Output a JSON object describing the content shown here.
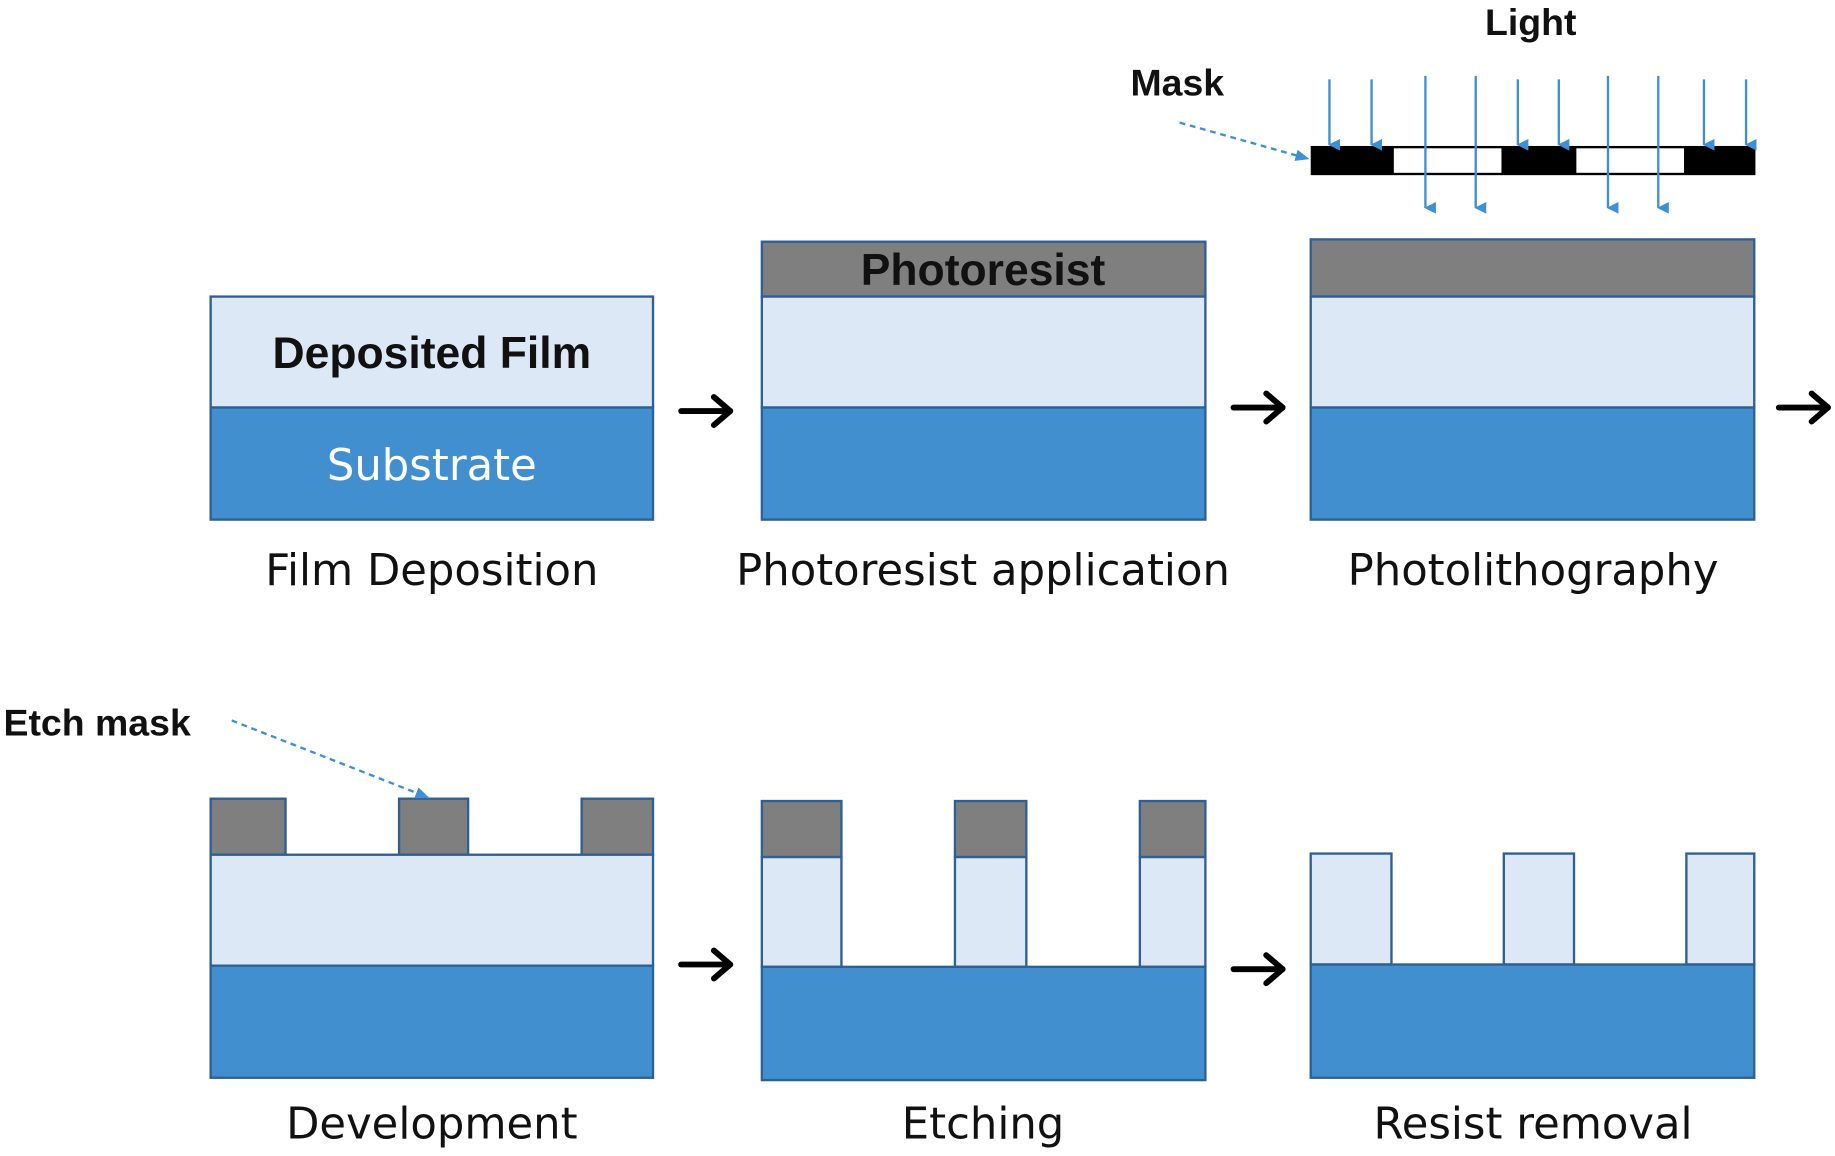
{
  "colors": {
    "substrate": "#428fcf",
    "film": "#dce8f5",
    "photoresist": "#7f7f7f",
    "light": "#3f8fd6",
    "border": "#2e5f95"
  },
  "steps": [
    {
      "label": "Film Deposition",
      "film_text": "Deposited Film",
      "substrate_text": "Substrate"
    },
    {
      "label": "Photoresist application",
      "resist_text": "Photoresist"
    },
    {
      "label": "Photolithography"
    },
    {
      "label": "Development"
    },
    {
      "label": "Etching"
    },
    {
      "label": "Resist removal"
    }
  ],
  "annotations": {
    "light": "Light",
    "mask": "Mask",
    "etch_mask": "Etch mask"
  }
}
